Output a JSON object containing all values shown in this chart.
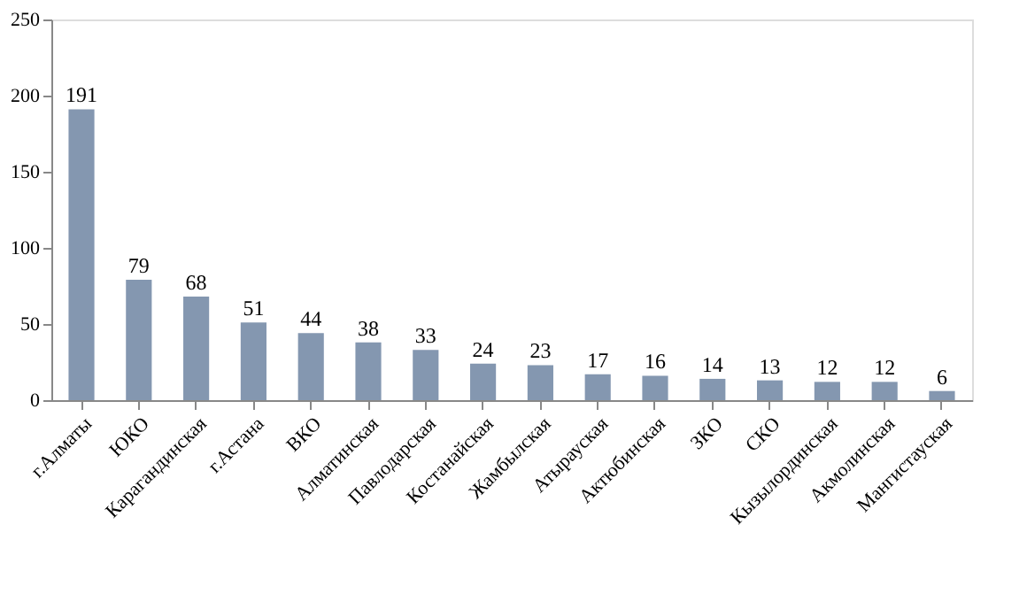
{
  "chart_data": {
    "type": "bar",
    "categories": [
      "г.Алматы",
      "ЮКО",
      "Карагандинская",
      "г.Астана",
      "ВКО",
      "Алматинская",
      "Павлодарская",
      "Костанайская",
      "Жамбылская",
      "Атырауская",
      "Актюбинская",
      "ЗКО",
      "СКО",
      "Кызылординская",
      "Акмолинская",
      "Мангистауская"
    ],
    "values": [
      191,
      79,
      68,
      51,
      44,
      38,
      33,
      24,
      23,
      17,
      16,
      14,
      13,
      12,
      12,
      6
    ],
    "color": "#8497b0",
    "ylim": [
      0,
      250
    ],
    "yticks": [
      0,
      50,
      100,
      150,
      200,
      250
    ],
    "grid": false,
    "data_labels": true
  }
}
